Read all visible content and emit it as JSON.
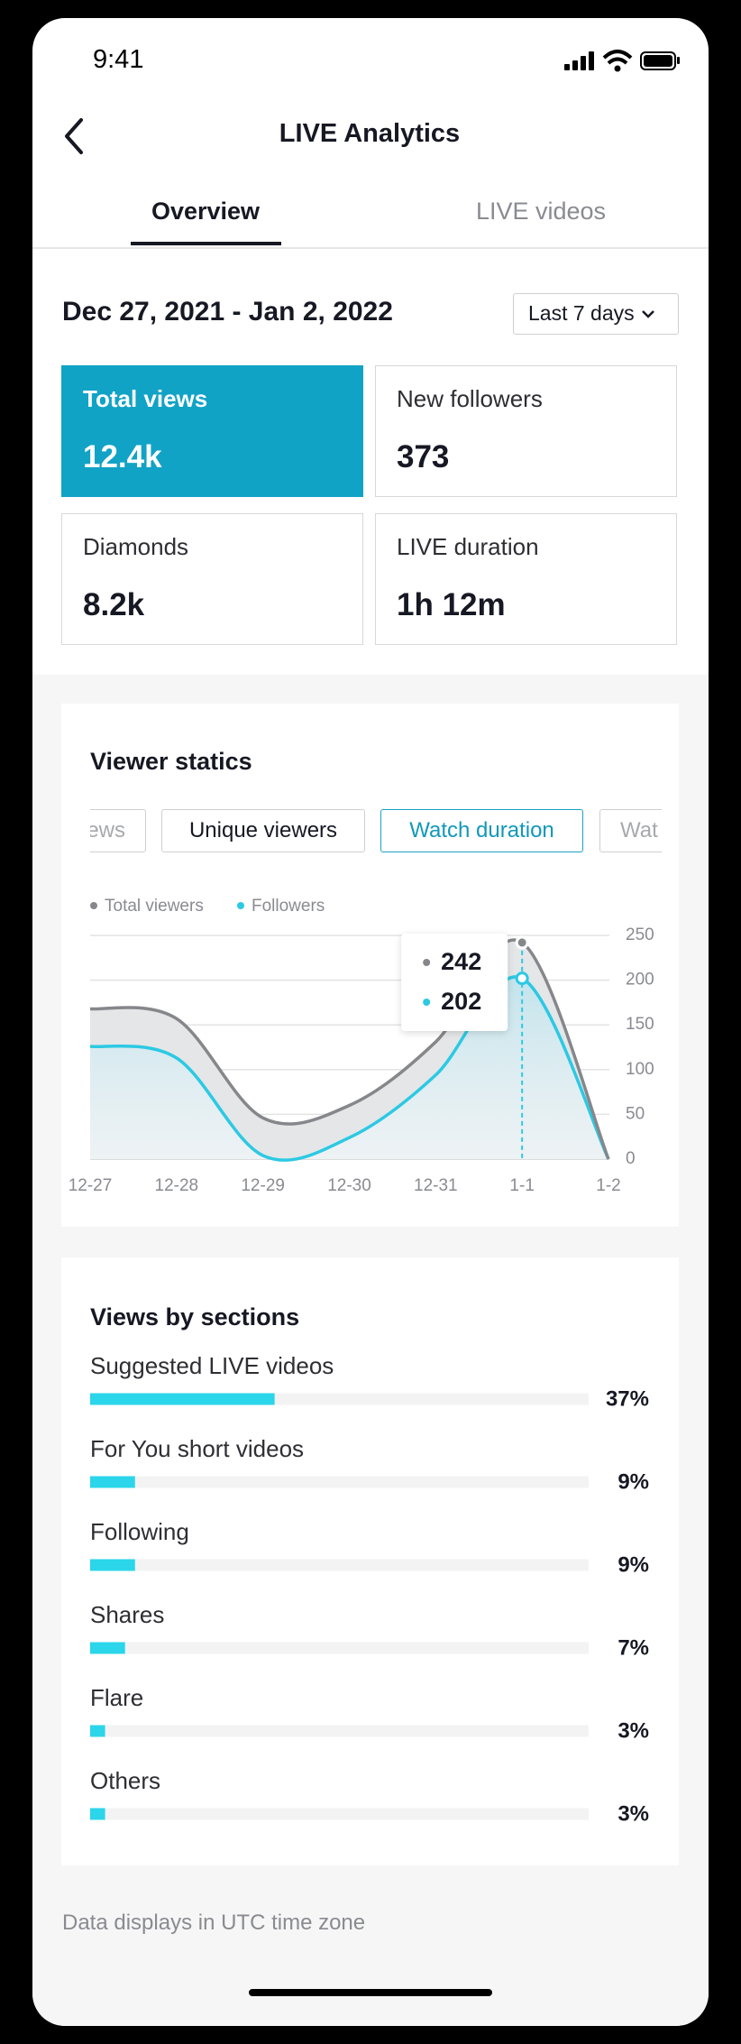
{
  "status_bar": {
    "time": "9:41"
  },
  "header": {
    "title": "LIVE Analytics"
  },
  "tabs": [
    {
      "label": "Overview",
      "selected": true
    },
    {
      "label": "LIVE videos",
      "selected": false
    }
  ],
  "date_range": "Dec 27, 2021 - Jan 2, 2022",
  "range_selector": "Last 7 days",
  "metrics": [
    {
      "label": "Total views",
      "value": "12.4k",
      "selected": true
    },
    {
      "label": "New followers",
      "value": "373",
      "selected": false
    },
    {
      "label": "Diamonds",
      "value": "8.2k",
      "selected": false
    },
    {
      "label": "LIVE duration",
      "value": "1h 12m",
      "selected": false
    }
  ],
  "chart_data": [
    {
      "type": "line",
      "title": "Viewer statics",
      "chips": [
        {
          "label": "ews",
          "selected": false
        },
        {
          "label": "Unique viewers",
          "selected": false
        },
        {
          "label": "Watch duration",
          "selected": true
        },
        {
          "label": "Wat",
          "selected": false
        }
      ],
      "categories": [
        "12-27",
        "12-28",
        "12-29",
        "12-30",
        "12-31",
        "1-1",
        "1-2"
      ],
      "series": [
        {
          "name": "Total viewers",
          "color": "#86878b",
          "values": [
            168,
            157,
            46,
            60,
            131,
            242,
            0
          ]
        },
        {
          "name": "Followers",
          "color": "#2cc9e3",
          "values": [
            126,
            113,
            4,
            24,
            94,
            202,
            0
          ]
        }
      ],
      "ylim": [
        0,
        250
      ],
      "yticks": [
        0,
        50,
        100,
        150,
        200,
        250
      ],
      "grid": true
    },
    {
      "type": "bar",
      "title": "Views by sections",
      "categories": [
        "Suggested LIVE videos",
        "For You short videos",
        "Following",
        "Shares",
        "Flare",
        "Others"
      ],
      "values": [
        37,
        9,
        9,
        7,
        3,
        3
      ],
      "value_labels": [
        "37%",
        "9%",
        "9%",
        "7%",
        "3%",
        "3%"
      ],
      "color": "#2bd5ea",
      "xlim": [
        0,
        100
      ]
    }
  ],
  "footer": "Data displays in UTC time zone"
}
